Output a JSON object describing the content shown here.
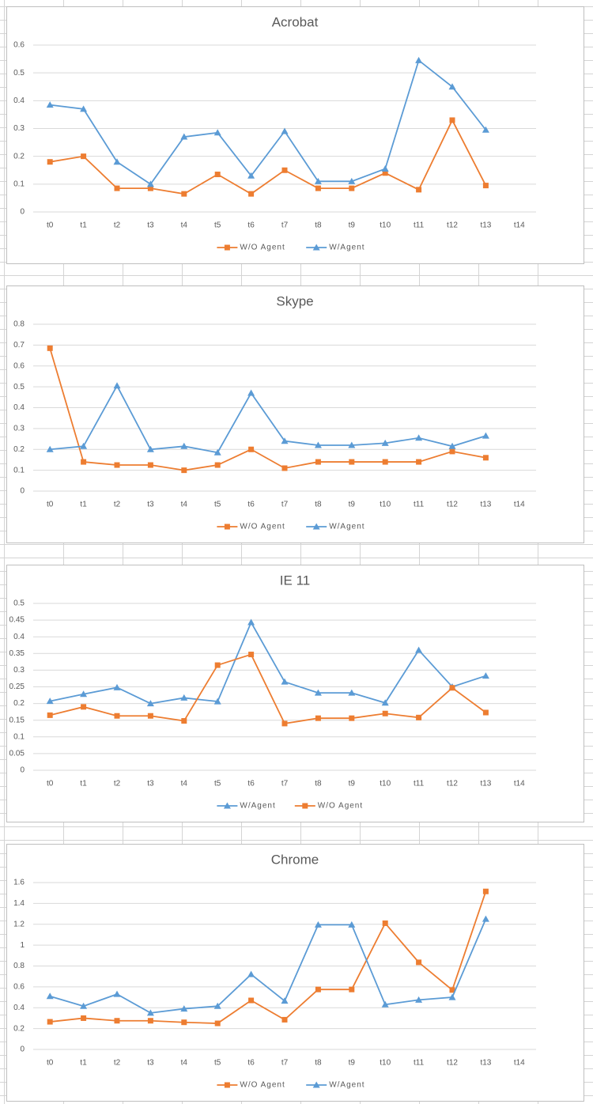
{
  "chart_data": [
    {
      "type": "line",
      "title": "Acrobat",
      "categories": [
        "t0",
        "t1",
        "t2",
        "t3",
        "t4",
        "t5",
        "t6",
        "t7",
        "t8",
        "t9",
        "t10",
        "t11",
        "t12",
        "t13",
        "t14"
      ],
      "series": [
        {
          "name": "W/O Agent",
          "color": "#ed7d31",
          "marker": "square",
          "values": [
            0.18,
            0.2,
            0.085,
            0.085,
            0.065,
            0.135,
            0.065,
            0.15,
            0.085,
            0.085,
            0.14,
            0.08,
            0.33,
            0.095,
            null
          ]
        },
        {
          "name": "W/Agent",
          "color": "#5b9bd5",
          "marker": "triangle",
          "values": [
            0.385,
            0.37,
            0.18,
            0.1,
            0.27,
            0.285,
            0.13,
            0.29,
            0.11,
            0.11,
            0.155,
            0.545,
            0.45,
            0.295,
            null
          ]
        }
      ],
      "ylim": [
        0,
        0.6
      ],
      "yticks": [
        0,
        0.1,
        0.2,
        0.3,
        0.4,
        0.5,
        0.6
      ],
      "grid": true,
      "legend": "bottom"
    },
    {
      "type": "line",
      "title": "Skype",
      "categories": [
        "t0",
        "t1",
        "t2",
        "t3",
        "t4",
        "t5",
        "t6",
        "t7",
        "t8",
        "t9",
        "t10",
        "t11",
        "t12",
        "t13",
        "t14"
      ],
      "series": [
        {
          "name": "W/O Agent",
          "color": "#ed7d31",
          "marker": "square",
          "values": [
            0.685,
            0.14,
            0.125,
            0.125,
            0.1,
            0.125,
            0.2,
            0.11,
            0.14,
            0.14,
            0.14,
            0.14,
            0.19,
            0.16,
            null
          ]
        },
        {
          "name": "W/Agent",
          "color": "#5b9bd5",
          "marker": "triangle",
          "values": [
            0.2,
            0.215,
            0.505,
            0.2,
            0.215,
            0.185,
            0.47,
            0.24,
            0.22,
            0.22,
            0.23,
            0.255,
            0.215,
            0.265,
            null
          ]
        }
      ],
      "ylim": [
        0,
        0.8
      ],
      "yticks": [
        0,
        0.1,
        0.2,
        0.3,
        0.4,
        0.5,
        0.6,
        0.7,
        0.8
      ],
      "grid": true,
      "legend": "bottom"
    },
    {
      "type": "line",
      "title": "IE 11",
      "categories": [
        "t0",
        "t1",
        "t2",
        "t3",
        "t4",
        "t5",
        "t6",
        "t7",
        "t8",
        "t9",
        "t10",
        "t11",
        "t12",
        "t13",
        "t14"
      ],
      "series": [
        {
          "name": "W/Agent",
          "color": "#5b9bd5",
          "marker": "triangle",
          "values": [
            0.207,
            0.228,
            0.248,
            0.2,
            0.217,
            0.206,
            0.443,
            0.265,
            0.232,
            0.232,
            0.202,
            0.36,
            0.25,
            0.283,
            null
          ]
        },
        {
          "name": "W/O Agent",
          "color": "#ed7d31",
          "marker": "square",
          "values": [
            0.165,
            0.19,
            0.163,
            0.163,
            0.148,
            0.315,
            0.347,
            0.14,
            0.156,
            0.156,
            0.17,
            0.158,
            0.247,
            0.173,
            null
          ]
        }
      ],
      "ylim": [
        0,
        0.5
      ],
      "yticks": [
        0,
        0.05,
        0.1,
        0.15,
        0.2,
        0.25,
        0.3,
        0.35,
        0.4,
        0.45,
        0.5
      ],
      "grid": true,
      "legend": "bottom"
    },
    {
      "type": "line",
      "title": "Chrome",
      "categories": [
        "t0",
        "t1",
        "t2",
        "t3",
        "t4",
        "t5",
        "t6",
        "t7",
        "t8",
        "t9",
        "t10",
        "t11",
        "t12",
        "t13",
        "t14"
      ],
      "series": [
        {
          "name": "W/O Agent",
          "color": "#ed7d31",
          "marker": "square",
          "values": [
            0.265,
            0.3,
            0.275,
            0.275,
            0.26,
            0.25,
            0.47,
            0.285,
            0.575,
            0.575,
            1.21,
            0.835,
            0.57,
            1.515,
            null
          ]
        },
        {
          "name": "W/Agent",
          "color": "#5b9bd5",
          "marker": "triangle",
          "values": [
            0.51,
            0.415,
            0.53,
            0.35,
            0.39,
            0.415,
            0.72,
            0.465,
            1.195,
            1.195,
            0.43,
            0.475,
            0.5,
            1.25,
            null
          ]
        }
      ],
      "ylim": [
        0,
        1.6
      ],
      "yticks": [
        0,
        0.2,
        0.4,
        0.6,
        0.8,
        1,
        1.2,
        1.4,
        1.6
      ],
      "grid": true,
      "legend": "bottom"
    }
  ]
}
